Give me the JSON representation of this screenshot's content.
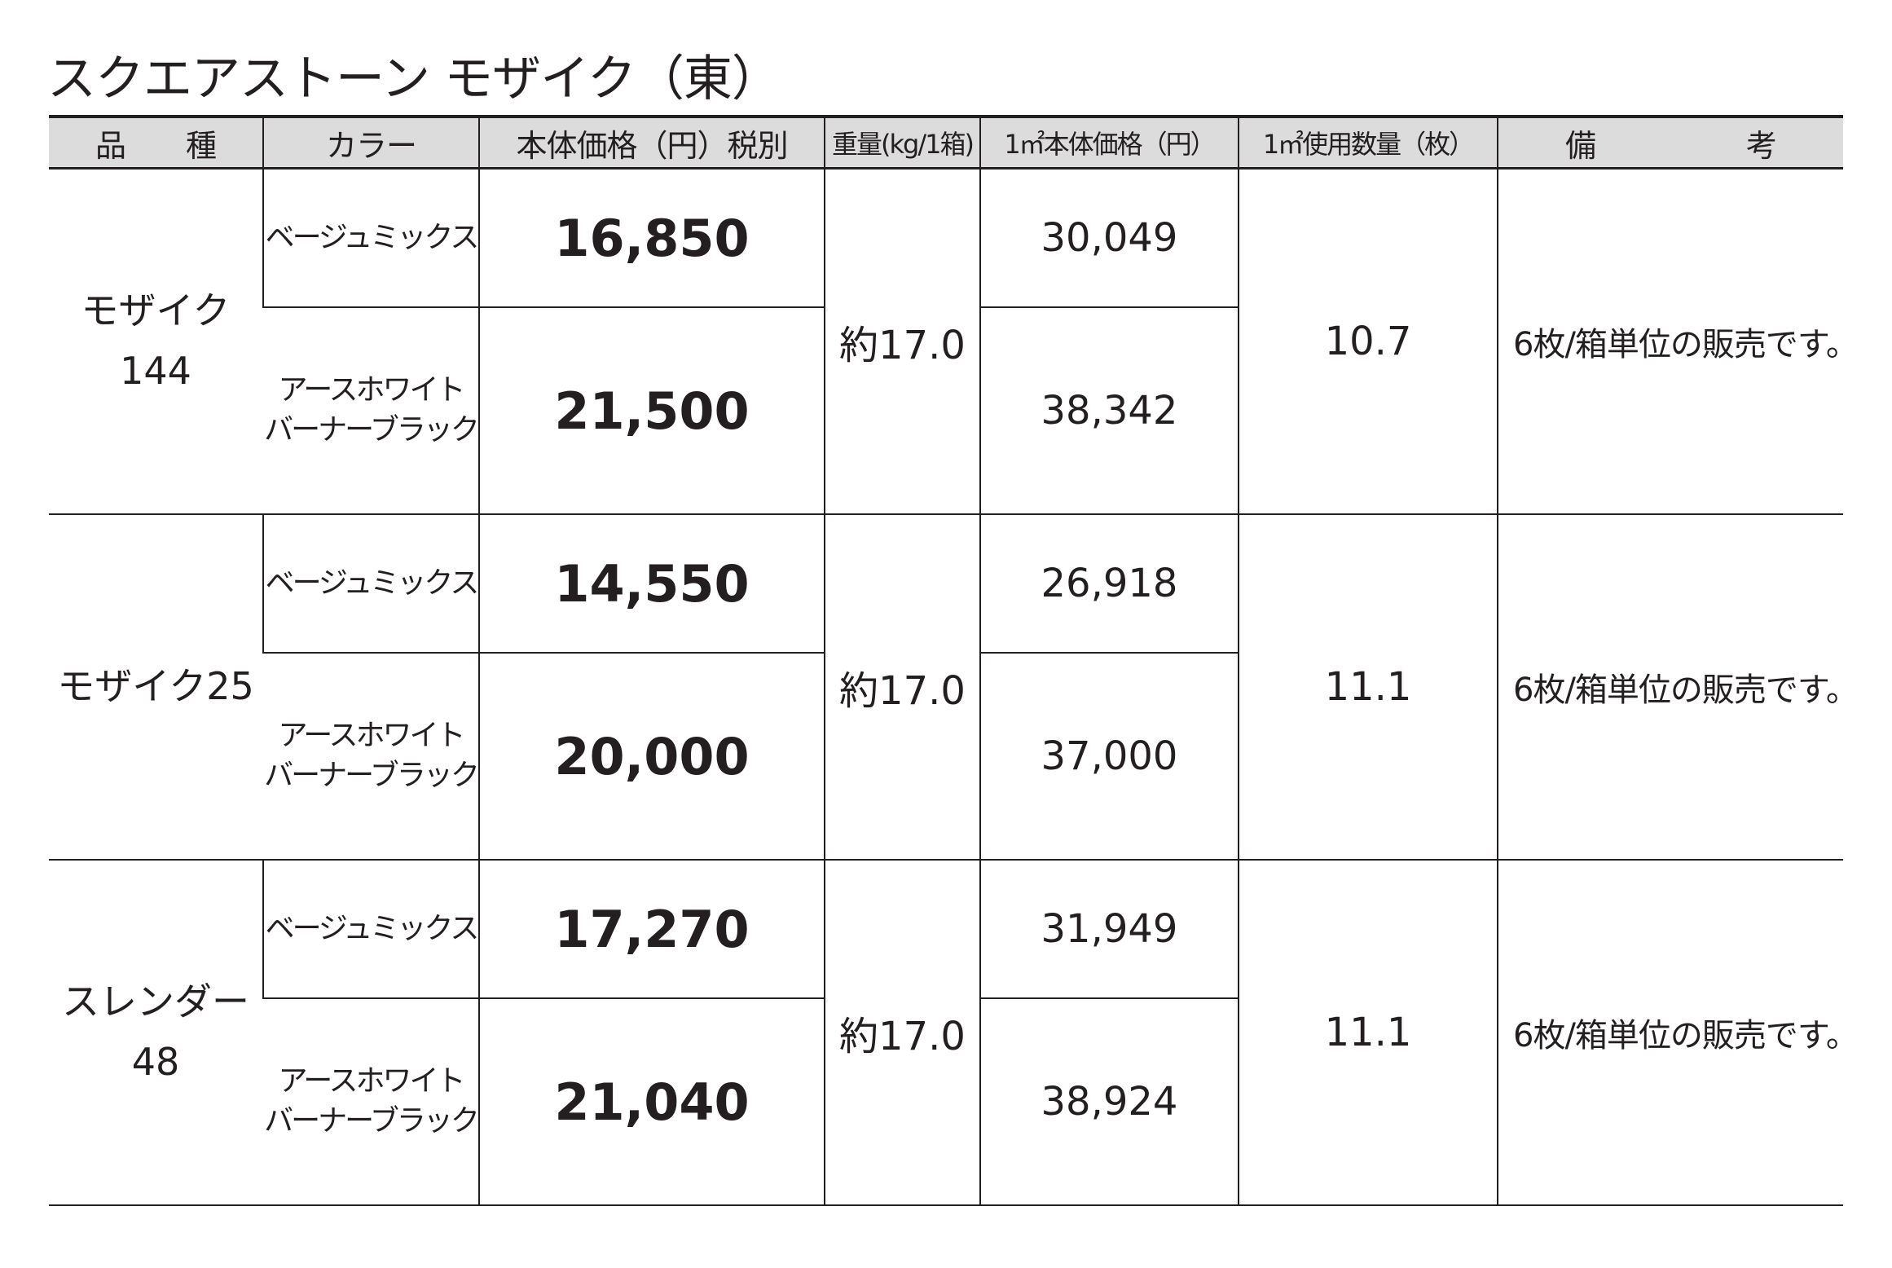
{
  "header": {
    "title": "スクエアストーン モザイク（東）"
  },
  "table": {
    "headers": [
      "品　　種",
      "カラー",
      "本体価格（円）税別",
      "重量(kg/1箱)",
      "1㎡本体価格（円）",
      "1㎡使用数量（枚）",
      "備　　　　　考"
    ],
    "rows": [
      {
        "variety": "モザイク\n144",
        "weight": "約17.0",
        "quantity": "10.7",
        "note": "6枚/箱単位の販売です。",
        "items": [
          {
            "color": "ベージュミックス",
            "price": "16,850",
            "price_per_m2": "30,049"
          },
          {
            "color": "アースホワイト\nバーナーブラック",
            "price": "21,500",
            "price_per_m2": "38,342"
          }
        ]
      },
      {
        "variety": "モザイク25",
        "weight": "約17.0",
        "quantity": "11.1",
        "note": "6枚/箱単位の販売です。",
        "items": [
          {
            "color": "ベージュミックス",
            "price": "14,550",
            "price_per_m2": "26,918"
          },
          {
            "color": "アースホワイト\nバーナーブラック",
            "price": "20,000",
            "price_per_m2": "37,000"
          }
        ]
      },
      {
        "variety": "スレンダー\n48",
        "weight": "約17.0",
        "quantity": "11.1",
        "note": "6枚/箱単位の販売です。",
        "items": [
          {
            "color": "ベージュミックス",
            "price": "17,270",
            "price_per_m2": "31,949"
          },
          {
            "color": "アースホワイト\nバーナーブラック",
            "price": "21,040",
            "price_per_m2": "38,924"
          }
        ]
      }
    ]
  }
}
